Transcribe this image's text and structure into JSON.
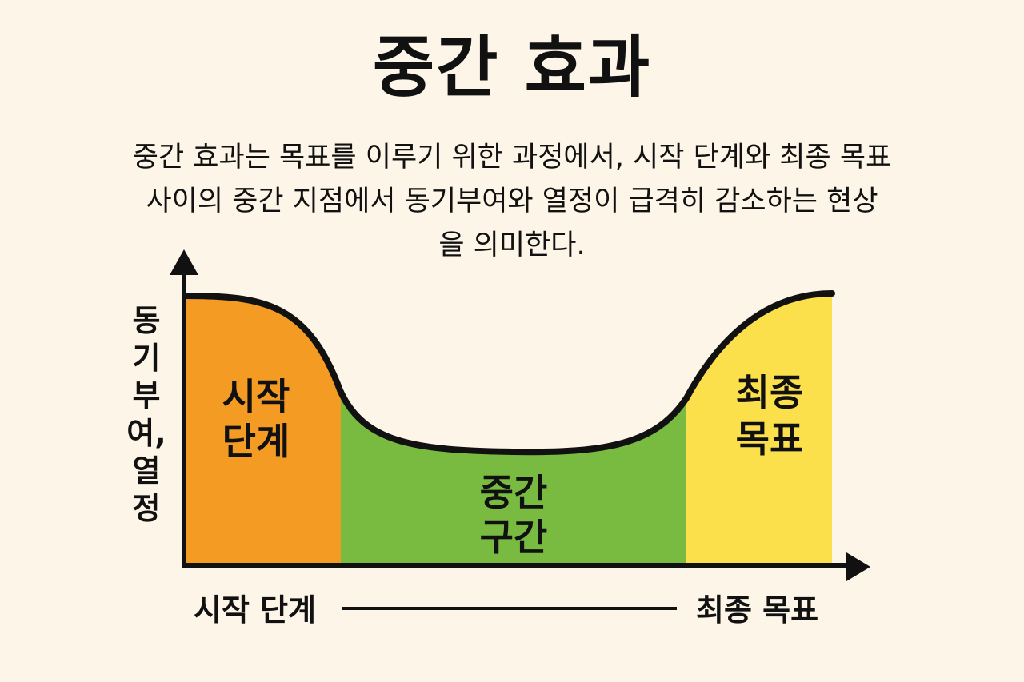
{
  "title": "중간 효과",
  "description": [
    "중간 효과는 목표를 이루기 위한 과정에서, 시작 단계와 최종 목표",
    "사이의 중간 지점에서 동기부여와 열정이 급격히 감소하는 현상",
    "을 의미한다."
  ],
  "y_axis_label": [
    "동",
    "기",
    "부",
    "여,",
    "열",
    "정"
  ],
  "zones": [
    {
      "lines": [
        "시작",
        "단계"
      ],
      "color": "#f49b23"
    },
    {
      "lines": [
        "중간",
        "구간"
      ],
      "color": "#79bb41"
    },
    {
      "lines": [
        "최종",
        "목표"
      ],
      "color": "#fbdf4b"
    }
  ],
  "progress_axis": {
    "start_label": "시작 단계",
    "end_label": "최종 목표"
  },
  "colors": {
    "background": "#fdf5e8",
    "ink": "#111111"
  }
}
